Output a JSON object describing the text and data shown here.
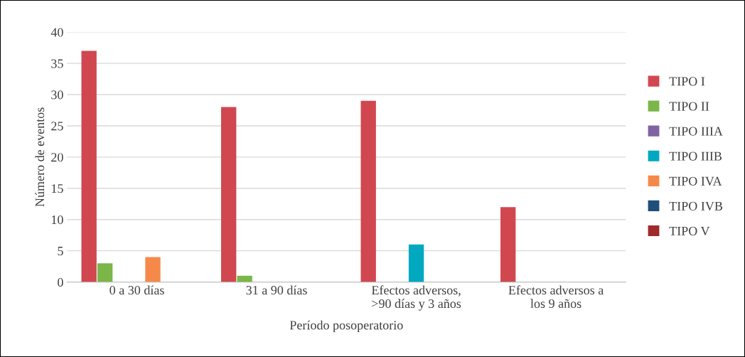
{
  "chart_data": {
    "type": "bar",
    "xlabel": "Período posoperatorio",
    "ylabel": "Número de eventos",
    "categories": [
      "0 a 30 días",
      "31 a 90 días",
      "Efectos adversos,\n>90 días y 3 años",
      "Efectos adversos a\nlos 9 años"
    ],
    "series": [
      {
        "name": "TIPO I",
        "color": "#d1474f",
        "values": [
          37,
          28,
          29,
          12
        ]
      },
      {
        "name": "TIPO II",
        "color": "#7ab648",
        "values": [
          3,
          1,
          0,
          0
        ]
      },
      {
        "name": "TIPO IIIA",
        "color": "#8064a2",
        "values": [
          0,
          0,
          0,
          0
        ]
      },
      {
        "name": "TIPO IIIB",
        "color": "#00a8c0",
        "values": [
          0,
          0,
          6,
          0
        ]
      },
      {
        "name": "TIPO IVA",
        "color": "#f5894a",
        "values": [
          4,
          0,
          0,
          0
        ]
      },
      {
        "name": "TIPO IVB",
        "color": "#1f4e79",
        "values": [
          0,
          0,
          0,
          0
        ]
      },
      {
        "name": "TIPO V",
        "color": "#9e2a2b",
        "values": [
          0,
          0,
          0,
          0
        ]
      }
    ],
    "ylim": [
      0,
      40
    ],
    "yticks": [
      0,
      5,
      10,
      15,
      20,
      25,
      30,
      35,
      40
    ],
    "grid": "y",
    "legend": "right"
  }
}
